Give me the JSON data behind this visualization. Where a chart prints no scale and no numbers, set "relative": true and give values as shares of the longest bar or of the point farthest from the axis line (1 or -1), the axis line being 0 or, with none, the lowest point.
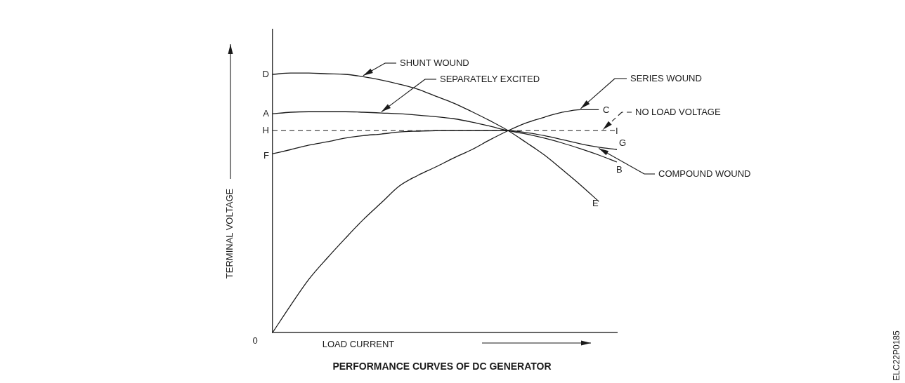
{
  "chart_data": {
    "type": "line",
    "relative": true,
    "title": "PERFORMANCE CURVES OF DC GENERATOR",
    "xlabel": "LOAD CURRENT",
    "ylabel": "TERMINAL VOLTAGE",
    "legend": "right",
    "marker": "none",
    "categories": [
      null,
      null,
      null,
      null,
      null,
      null,
      null,
      null,
      null,
      null,
      null,
      null,
      null,
      null,
      null,
      null,
      null,
      null,
      null,
      null
    ],
    "series": [
      {
        "name": "SHUNT WOUND",
        "color": "#1a1a1a",
        "values": [
          0.995,
          1.0,
          1.0,
          0.997,
          0.995,
          0.986,
          0.973,
          0.957,
          0.938,
          0.911,
          0.884,
          0.851,
          0.816,
          0.778,
          0.732,
          0.684,
          0.627,
          0.568,
          0.505,
          null
        ]
      },
      {
        "name": "SEPARATELY EXCITED",
        "color": "#1a1a1a",
        "values": [
          0.843,
          0.849,
          0.851,
          0.851,
          0.851,
          0.849,
          0.846,
          0.843,
          0.838,
          0.832,
          0.824,
          0.811,
          0.795,
          0.778,
          0.765,
          0.749,
          0.73,
          0.708,
          0.684,
          0.657
        ]
      },
      {
        "name": "SERIES WOUND",
        "color": "#1a1a1a",
        "values": [
          0,
          0.105,
          0.205,
          0.286,
          0.362,
          0.435,
          0.5,
          0.565,
          0.605,
          0.638,
          0.673,
          0.705,
          0.743,
          0.778,
          0.808,
          0.83,
          0.849,
          0.859,
          0.859,
          null
        ]
      },
      {
        "name": "COMPOUND WOUND",
        "color": "#1a1a1a",
        "values": [
          0.689,
          0.705,
          0.722,
          0.735,
          0.749,
          0.759,
          0.765,
          0.773,
          0.776,
          0.778,
          0.778,
          0.778,
          0.778,
          0.778,
          0.77,
          0.759,
          0.743,
          0.727,
          0.714,
          0.705
        ]
      }
    ],
    "ref_lines": [
      {
        "axis": "y",
        "value": 0.778,
        "label": "NO LOAD VOLTAGE",
        "color": "#1a1a1a",
        "line_style": "dashed"
      }
    ],
    "annotations": [
      "D",
      "A",
      "H",
      "F",
      "0",
      "C",
      "I",
      "G",
      "B",
      "E",
      "ELC22P0185"
    ]
  }
}
